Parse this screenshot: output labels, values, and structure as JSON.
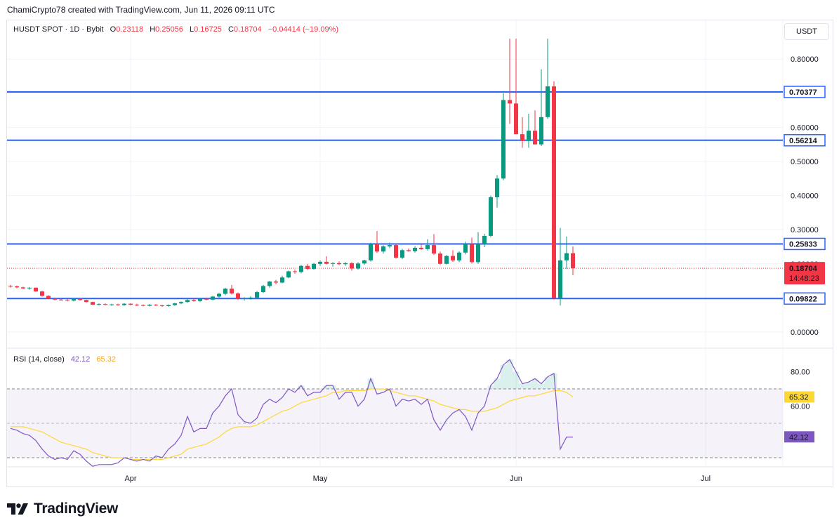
{
  "header": {
    "credit": "ChamiCrypto78 created with TradingView.com, Jun 11, 2026 09:11 UTC"
  },
  "symbol_bar": {
    "symbol": "HUSDT SPOT · 1D · Bybit",
    "open_label": "O",
    "open": "0.23118",
    "high_label": "H",
    "high": "0.25056",
    "low_label": "L",
    "low": "0.16725",
    "close_label": "C",
    "close": "0.18704",
    "change": "−0.04414 (−19.09%)"
  },
  "currency": "USDT",
  "rsi_legend": {
    "label": "RSI (14, close)",
    "rsi_value": "42.12",
    "ma_value": "65.32"
  },
  "footer": {
    "brand": "TradingView"
  },
  "colors": {
    "up": "#089981",
    "down": "#f23645",
    "level": "#2962ff",
    "rsi": "#7e57c2",
    "rsi_ma": "#fdd835"
  },
  "chart_data": [
    {
      "type": "candlestick",
      "title": "HUSDT SPOT · 1D · Bybit",
      "y_range": [
        0,
        0.8
      ],
      "y_ticks": [
        "0.80000",
        "0.60000",
        "0.50000",
        "0.40000",
        "0.30000",
        "0.20000",
        "0.00000"
      ],
      "x_tick_labels": [
        "Apr",
        "May",
        "Jun",
        "Jul"
      ],
      "x_tick_dates": [
        "2026-04-01",
        "2026-05-01",
        "2026-06-01",
        "2026-07-01"
      ],
      "horizontal_levels": [
        {
          "label": "0.70377",
          "value": 0.70377
        },
        {
          "label": "0.56214",
          "value": 0.56214
        },
        {
          "label": "0.25833",
          "value": 0.25833
        },
        {
          "label": "0.09822",
          "value": 0.09822
        }
      ],
      "last_price": {
        "label": "0.18704",
        "value": 0.18704,
        "countdown": "14:48:23"
      },
      "start_date": "2026-03-13",
      "ohlc": [
        [
          0.135,
          0.138,
          0.13,
          0.134
        ],
        [
          0.134,
          0.136,
          0.128,
          0.131
        ],
        [
          0.131,
          0.133,
          0.126,
          0.128
        ],
        [
          0.128,
          0.132,
          0.124,
          0.13
        ],
        [
          0.13,
          0.131,
          0.118,
          0.119
        ],
        [
          0.119,
          0.121,
          0.104,
          0.106
        ],
        [
          0.106,
          0.108,
          0.096,
          0.098
        ],
        [
          0.098,
          0.101,
          0.093,
          0.095
        ],
        [
          0.095,
          0.098,
          0.092,
          0.094
        ],
        [
          0.094,
          0.097,
          0.09,
          0.092
        ],
        [
          0.092,
          0.1,
          0.09,
          0.098
        ],
        [
          0.098,
          0.099,
          0.092,
          0.094
        ],
        [
          0.094,
          0.095,
          0.086,
          0.088
        ],
        [
          0.088,
          0.089,
          0.079,
          0.08
        ],
        [
          0.08,
          0.084,
          0.078,
          0.082
        ],
        [
          0.082,
          0.084,
          0.078,
          0.08
        ],
        [
          0.08,
          0.083,
          0.077,
          0.081
        ],
        [
          0.081,
          0.083,
          0.077,
          0.079
        ],
        [
          0.079,
          0.085,
          0.077,
          0.083
        ],
        [
          0.083,
          0.084,
          0.078,
          0.08
        ],
        [
          0.08,
          0.083,
          0.076,
          0.079
        ],
        [
          0.079,
          0.081,
          0.075,
          0.077
        ],
        [
          0.077,
          0.082,
          0.075,
          0.08
        ],
        [
          0.08,
          0.082,
          0.076,
          0.078
        ],
        [
          0.078,
          0.08,
          0.074,
          0.076
        ],
        [
          0.076,
          0.081,
          0.074,
          0.079
        ],
        [
          0.079,
          0.086,
          0.077,
          0.084
        ],
        [
          0.084,
          0.09,
          0.082,
          0.088
        ],
        [
          0.088,
          0.096,
          0.086,
          0.094
        ],
        [
          0.094,
          0.1,
          0.089,
          0.091
        ],
        [
          0.091,
          0.1,
          0.088,
          0.097
        ],
        [
          0.097,
          0.101,
          0.093,
          0.095
        ],
        [
          0.095,
          0.106,
          0.093,
          0.104
        ],
        [
          0.104,
          0.115,
          0.1,
          0.112
        ],
        [
          0.112,
          0.13,
          0.108,
          0.127
        ],
        [
          0.127,
          0.138,
          0.11,
          0.113
        ],
        [
          0.113,
          0.116,
          0.094,
          0.097
        ],
        [
          0.097,
          0.102,
          0.092,
          0.099
        ],
        [
          0.099,
          0.105,
          0.095,
          0.101
        ],
        [
          0.101,
          0.12,
          0.099,
          0.117
        ],
        [
          0.117,
          0.138,
          0.115,
          0.135
        ],
        [
          0.135,
          0.15,
          0.13,
          0.148
        ],
        [
          0.148,
          0.153,
          0.14,
          0.145
        ],
        [
          0.145,
          0.165,
          0.143,
          0.16
        ],
        [
          0.16,
          0.18,
          0.158,
          0.178
        ],
        [
          0.178,
          0.183,
          0.171,
          0.176
        ],
        [
          0.176,
          0.197,
          0.172,
          0.194
        ],
        [
          0.194,
          0.2,
          0.182,
          0.185
        ],
        [
          0.185,
          0.203,
          0.183,
          0.2
        ],
        [
          0.2,
          0.21,
          0.194,
          0.206
        ],
        [
          0.206,
          0.222,
          0.198,
          0.2
        ],
        [
          0.2,
          0.205,
          0.192,
          0.202
        ],
        [
          0.202,
          0.207,
          0.196,
          0.199
        ],
        [
          0.199,
          0.205,
          0.194,
          0.202
        ],
        [
          0.202,
          0.205,
          0.18,
          0.186
        ],
        [
          0.186,
          0.205,
          0.183,
          0.201
        ],
        [
          0.201,
          0.212,
          0.197,
          0.21
        ],
        [
          0.21,
          0.262,
          0.207,
          0.258
        ],
        [
          0.258,
          0.296,
          0.232,
          0.236
        ],
        [
          0.236,
          0.254,
          0.23,
          0.251
        ],
        [
          0.251,
          0.262,
          0.246,
          0.255
        ],
        [
          0.255,
          0.258,
          0.215,
          0.218
        ],
        [
          0.218,
          0.244,
          0.214,
          0.24
        ],
        [
          0.24,
          0.245,
          0.235,
          0.237
        ],
        [
          0.237,
          0.252,
          0.233,
          0.247
        ],
        [
          0.247,
          0.258,
          0.241,
          0.243
        ],
        [
          0.243,
          0.272,
          0.239,
          0.255
        ],
        [
          0.255,
          0.287,
          0.226,
          0.23
        ],
        [
          0.23,
          0.236,
          0.197,
          0.2
        ],
        [
          0.2,
          0.226,
          0.198,
          0.223
        ],
        [
          0.223,
          0.24,
          0.206,
          0.21
        ],
        [
          0.21,
          0.237,
          0.205,
          0.233
        ],
        [
          0.233,
          0.265,
          0.228,
          0.258
        ],
        [
          0.258,
          0.277,
          0.201,
          0.205
        ],
        [
          0.205,
          0.293,
          0.2,
          0.258
        ],
        [
          0.258,
          0.288,
          0.249,
          0.282
        ],
        [
          0.282,
          0.4,
          0.278,
          0.395
        ],
        [
          0.395,
          0.46,
          0.365,
          0.45
        ],
        [
          0.45,
          0.7,
          0.445,
          0.68
        ],
        [
          0.68,
          0.86,
          0.61,
          0.67
        ],
        [
          0.67,
          0.86,
          0.58,
          0.58
        ],
        [
          0.58,
          0.63,
          0.54,
          0.56
        ],
        [
          0.56,
          0.64,
          0.54,
          0.59
        ],
        [
          0.59,
          0.65,
          0.55,
          0.55
        ],
        [
          0.55,
          0.77,
          0.545,
          0.63
        ],
        [
          0.63,
          0.86,
          0.625,
          0.72
        ],
        [
          0.72,
          0.735,
          0.095,
          0.1
        ],
        [
          0.1,
          0.305,
          0.078,
          0.21
        ],
        [
          0.21,
          0.28,
          0.185,
          0.231
        ],
        [
          0.231,
          0.251,
          0.167,
          0.187
        ]
      ]
    },
    {
      "type": "line",
      "title": "RSI (14, close)",
      "y_ticks": [
        "80.00",
        "60.00"
      ],
      "bands": [
        70,
        50,
        30
      ],
      "last_rsi": 42.12,
      "last_ma": 65.32,
      "series": [
        {
          "name": "RSI",
          "values": [
            47,
            46,
            44,
            43,
            40,
            35,
            31,
            29,
            30,
            29,
            34,
            32,
            28,
            25,
            26,
            26,
            26,
            27,
            30,
            29,
            28,
            29,
            28,
            31,
            30,
            35,
            38,
            43,
            54,
            45,
            47,
            47,
            56,
            60,
            66,
            70,
            55,
            51,
            50,
            53,
            61,
            64,
            62,
            65,
            70,
            68,
            72,
            66,
            68,
            68,
            72,
            72,
            64,
            68,
            68,
            60,
            64,
            76,
            67,
            68,
            70,
            60,
            64,
            63,
            64,
            61,
            64,
            52,
            46,
            52,
            56,
            58,
            54,
            46,
            56,
            60,
            72,
            76,
            84,
            87,
            80,
            73,
            74,
            76,
            73,
            77,
            79,
            35,
            42,
            42
          ]
        },
        {
          "name": "MA",
          "values": [
            48,
            48,
            48,
            47,
            46,
            45,
            43,
            41,
            39,
            38,
            37,
            36,
            35,
            33,
            32,
            31,
            30,
            30,
            30,
            29,
            29,
            29,
            29,
            29,
            29,
            30,
            31,
            32,
            35,
            36,
            37,
            38,
            40,
            42,
            45,
            47,
            48,
            48,
            48,
            49,
            51,
            53,
            55,
            57,
            58,
            60,
            62,
            63,
            64,
            65,
            66,
            68,
            68,
            69,
            69,
            69,
            69,
            70,
            70,
            70,
            69,
            68,
            67,
            66,
            66,
            65,
            64,
            63,
            61,
            60,
            59,
            58,
            58,
            57,
            57,
            57,
            58,
            59,
            61,
            63,
            64,
            65,
            66,
            66,
            67,
            68,
            69,
            69,
            68,
            65.32
          ]
        }
      ]
    }
  ]
}
